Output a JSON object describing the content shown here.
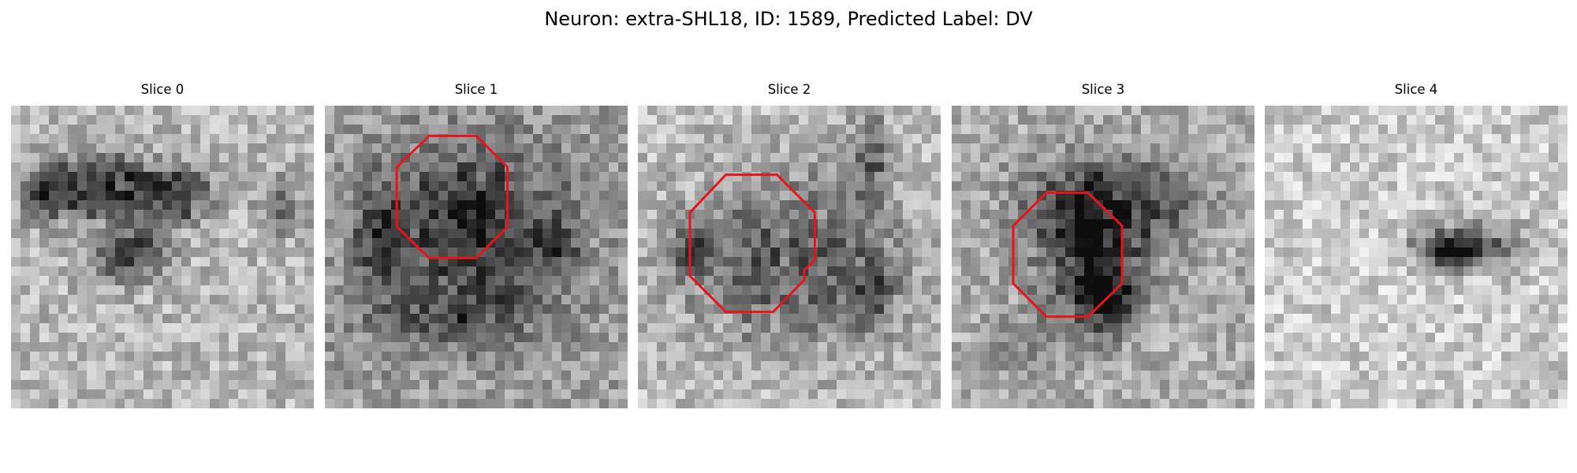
{
  "figure": {
    "title": "Neuron: extra-SHL18, ID: 1589, Predicted Label: DV"
  },
  "panels": [
    {
      "title": "Slice 0",
      "has_contour": false,
      "contour_color": "#e8141c"
    },
    {
      "title": "Slice 1",
      "has_contour": true,
      "contour_color": "#e8141c"
    },
    {
      "title": "Slice 2",
      "has_contour": true,
      "contour_color": "#e8141c"
    },
    {
      "title": "Slice 3",
      "has_contour": true,
      "contour_color": "#e8141c"
    },
    {
      "title": "Slice 4",
      "has_contour": false,
      "contour_color": "#e8141c"
    }
  ],
  "colors": {
    "background": "#ffffff",
    "colormap": "grayscale",
    "contour": "#e8141c"
  }
}
